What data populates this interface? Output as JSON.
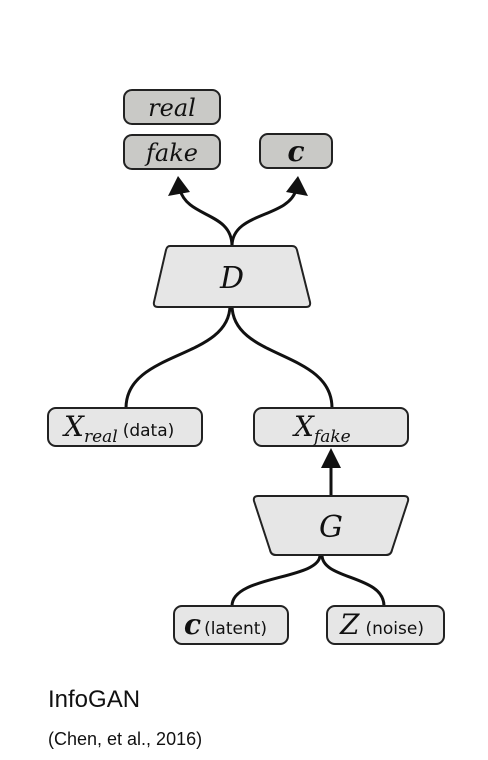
{
  "outputs": {
    "real": "real",
    "fake": "fake",
    "c": "c"
  },
  "discriminator": {
    "label": "D"
  },
  "x_real": {
    "symbol": "X",
    "subscript": "real",
    "note": "(data)"
  },
  "x_fake": {
    "symbol": "X",
    "subscript": "fake"
  },
  "generator": {
    "label": "G"
  },
  "inputs": {
    "c": {
      "symbol": "c",
      "note": "(latent)"
    },
    "z": {
      "symbol": "Z",
      "note": "(noise)"
    }
  },
  "caption": {
    "title": "InfoGAN",
    "citation": "(Chen, et al., 2016)"
  }
}
